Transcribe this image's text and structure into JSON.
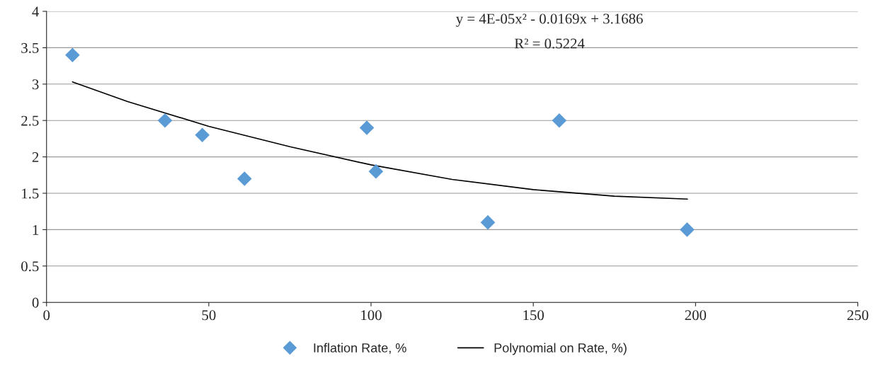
{
  "chart_data": {
    "type": "scatter",
    "series": [
      {
        "name": "Inflation Rate, %",
        "color": "#5b9bd5",
        "marker": "diamond",
        "x": [
          8,
          36.5,
          48,
          61,
          98.7,
          101.5,
          136,
          158,
          197.4
        ],
        "values": [
          3.4,
          2.5,
          2.3,
          1.7,
          2.4,
          1.8,
          1.1,
          2.5,
          1.0
        ]
      },
      {
        "name": "Polynomial on Rate, %)",
        "type": "line",
        "color": "#000000",
        "marker": "none",
        "line_style": "solid",
        "x": [
          8,
          25,
          50,
          75,
          100,
          125,
          150,
          175,
          197.5
        ],
        "values": [
          3.03,
          2.76,
          2.42,
          2.14,
          1.89,
          1.69,
          1.55,
          1.46,
          1.42
        ]
      }
    ],
    "annotations": [
      "y = 4E-05x² - 0.0169x + 3.1686",
      "R² = 0.5224"
    ],
    "xlim": [
      0,
      250
    ],
    "xticks": [
      0,
      50,
      100,
      150,
      200,
      250
    ],
    "ylim": [
      0,
      4
    ],
    "yticks": [
      0,
      0.5,
      1,
      1.5,
      2,
      2.5,
      3,
      3.5,
      4
    ],
    "grid": "y",
    "legend": "bottom"
  }
}
